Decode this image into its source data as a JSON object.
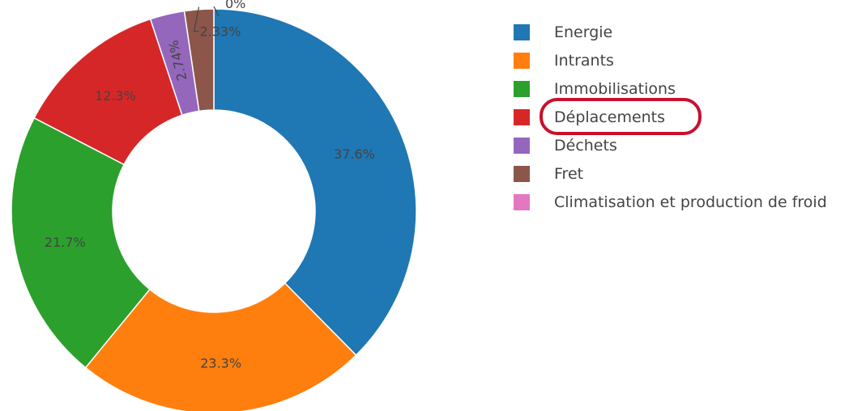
{
  "chart_data": {
    "type": "pie",
    "hole": true,
    "title": "",
    "legend_position": "right",
    "slices": [
      {
        "name": "Energie",
        "value": 37.6,
        "label": "37.6%",
        "color": "#1f77b4"
      },
      {
        "name": "Intrants",
        "value": 23.3,
        "label": "23.3%",
        "color": "#ff7f0e"
      },
      {
        "name": "Immobilisations",
        "value": 21.7,
        "label": "21.7%",
        "color": "#2ca02c"
      },
      {
        "name": "Déplacements",
        "value": 12.3,
        "label": "12.3%",
        "color": "#d62728"
      },
      {
        "name": "Déchets",
        "value": 2.74,
        "label": "2.74%",
        "color": "#9467bd"
      },
      {
        "name": "Fret",
        "value": 2.33,
        "label": "2.33%",
        "color": "#8c564b"
      },
      {
        "name": "Climatisation et production de froid",
        "value": 0,
        "label": "0%",
        "color": "#e377c2"
      }
    ],
    "highlighted_legend_item": "Déplacements",
    "highlight_color": "#c8102e"
  }
}
